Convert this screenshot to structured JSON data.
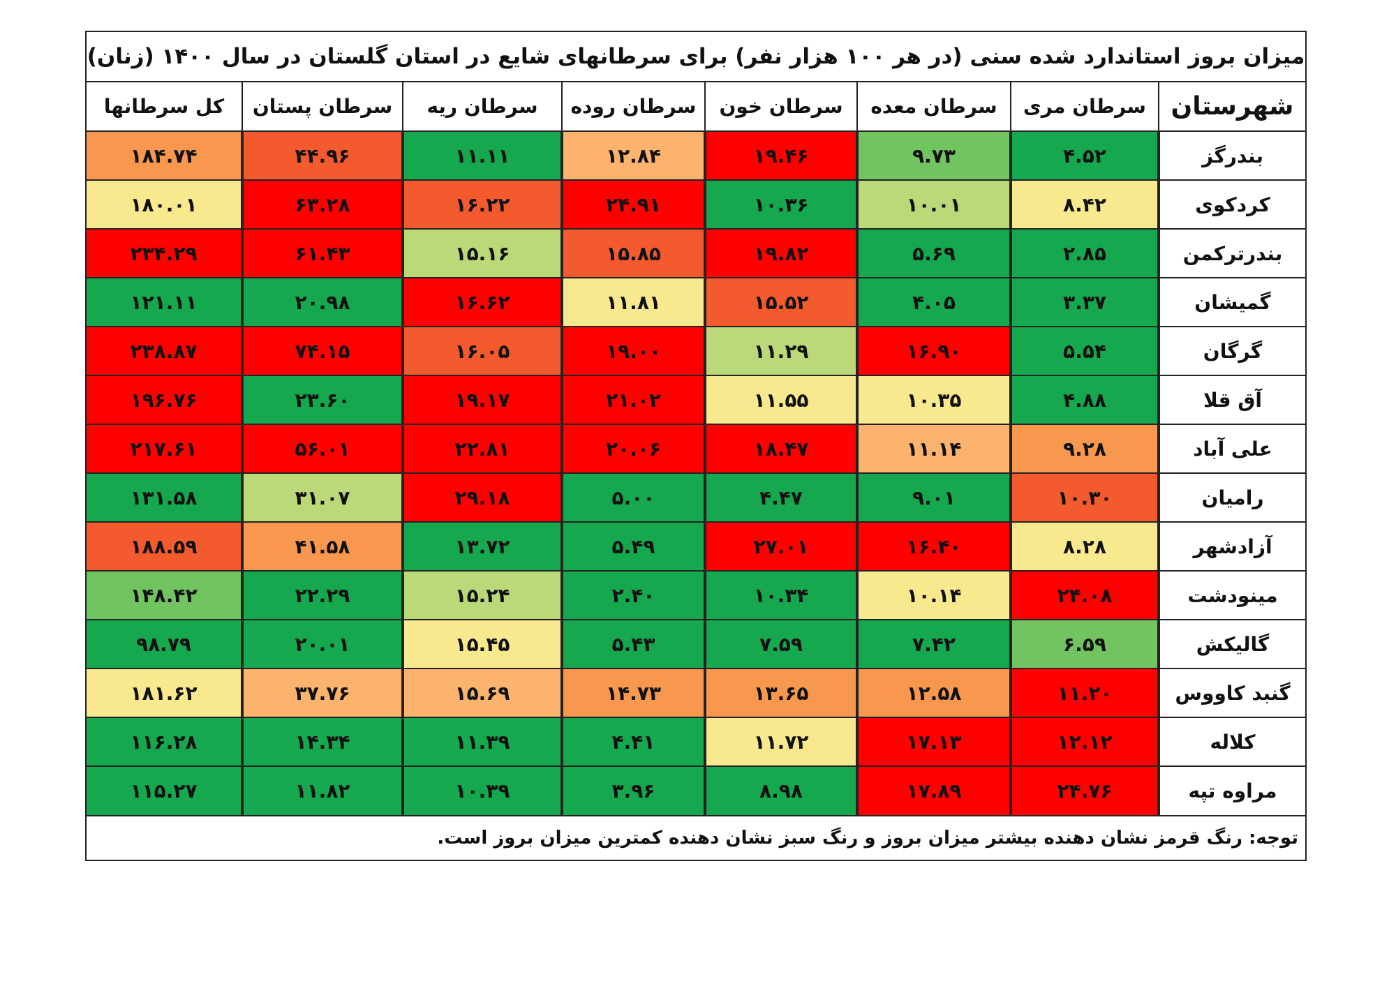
{
  "title": "میزان بروز استاندارد شده سنی (در هر ۱۰۰ هزار نفر) برای سرطانهای شایع در استان گلستان در سال ۱۴۰۰ (زنان)",
  "note": "توجه: رنگ قرمز نشان دهنده بیشتر میزان بروز و رنگ سبز نشان دهنده کمترین میزان بروز است.",
  "columns": [
    "شهرستان",
    "سرطان مری",
    "سرطان معده",
    "سرطان خون",
    "سرطان روده",
    "سرطان ریه",
    "سرطان پستان",
    "کل سرطانها"
  ],
  "palette": {
    "G": "#16a84e",
    "g": "#72c460",
    "l": "#bcd97a",
    "y": "#f8e88e",
    "o": "#fbb36e",
    "O": "#f8984f",
    "R": "#f35b2f",
    "r": "#ff0000"
  },
  "rows": [
    {
      "city": "بندرگز",
      "values": [
        "۴.۵۲",
        "۹.۷۳",
        "۱۹.۴۶",
        "۱۲.۸۴",
        "۱۱.۱۱",
        "۴۴.۹۶",
        "۱۸۴.۷۴"
      ],
      "colors": [
        "G",
        "g",
        "r",
        "o",
        "G",
        "R",
        "O"
      ]
    },
    {
      "city": "کردکوی",
      "values": [
        "۸.۴۲",
        "۱۰.۰۱",
        "۱۰.۳۶",
        "۲۴.۹۱",
        "۱۶.۲۲",
        "۶۳.۲۸",
        "۱۸۰.۰۱"
      ],
      "colors": [
        "y",
        "l",
        "G",
        "r",
        "R",
        "r",
        "y"
      ]
    },
    {
      "city": "بندرترکمن",
      "values": [
        "۲.۸۵",
        "۵.۶۹",
        "۱۹.۸۲",
        "۱۵.۸۵",
        "۱۵.۱۶",
        "۶۱.۴۳",
        "۲۳۴.۲۹"
      ],
      "colors": [
        "G",
        "G",
        "r",
        "R",
        "l",
        "r",
        "r"
      ]
    },
    {
      "city": "گمیشان",
      "values": [
        "۳.۳۷",
        "۴.۰۵",
        "۱۵.۵۲",
        "۱۱.۸۱",
        "۱۶.۶۲",
        "۲۰.۹۸",
        "۱۲۱.۱۱"
      ],
      "colors": [
        "G",
        "G",
        "R",
        "y",
        "r",
        "G",
        "G"
      ]
    },
    {
      "city": "گرگان",
      "values": [
        "۵.۵۴",
        "۱۶.۹۰",
        "۱۱.۲۹",
        "۱۹.۰۰",
        "۱۶.۰۵",
        "۷۴.۱۵",
        "۲۳۸.۸۷"
      ],
      "colors": [
        "G",
        "r",
        "l",
        "r",
        "R",
        "r",
        "r"
      ]
    },
    {
      "city": "آق قلا",
      "values": [
        "۴.۸۸",
        "۱۰.۳۵",
        "۱۱.۵۵",
        "۲۱.۰۲",
        "۱۹.۱۷",
        "۲۳.۶۰",
        "۱۹۶.۷۶"
      ],
      "colors": [
        "G",
        "y",
        "y",
        "r",
        "r",
        "G",
        "r"
      ]
    },
    {
      "city": "علی آباد",
      "values": [
        "۹.۲۸",
        "۱۱.۱۴",
        "۱۸.۴۷",
        "۲۰.۰۶",
        "۲۲.۸۱",
        "۵۶.۰۱",
        "۲۱۷.۶۱"
      ],
      "colors": [
        "O",
        "o",
        "r",
        "r",
        "r",
        "r",
        "r"
      ]
    },
    {
      "city": "رامیان",
      "values": [
        "۱۰.۳۰",
        "۹.۰۱",
        "۴.۴۷",
        "۵.۰۰",
        "۲۹.۱۸",
        "۳۱.۰۷",
        "۱۳۱.۵۸"
      ],
      "colors": [
        "R",
        "G",
        "G",
        "G",
        "r",
        "l",
        "G"
      ]
    },
    {
      "city": "آزادشهر",
      "values": [
        "۸.۲۸",
        "۱۶.۴۰",
        "۲۷.۰۱",
        "۵.۴۹",
        "۱۳.۷۲",
        "۴۱.۵۸",
        "۱۸۸.۵۹"
      ],
      "colors": [
        "y",
        "r",
        "r",
        "G",
        "G",
        "O",
        "R"
      ]
    },
    {
      "city": "مینودشت",
      "values": [
        "۲۴.۰۸",
        "۱۰.۱۴",
        "۱۰.۳۴",
        "۲.۴۰",
        "۱۵.۲۴",
        "۲۲.۲۹",
        "۱۴۸.۴۲"
      ],
      "colors": [
        "r",
        "y",
        "G",
        "G",
        "l",
        "G",
        "g"
      ]
    },
    {
      "city": "گالیکش",
      "values": [
        "۶.۵۹",
        "۷.۴۲",
        "۷.۵۹",
        "۵.۴۳",
        "۱۵.۴۵",
        "۲۰.۰۱",
        "۹۸.۷۹"
      ],
      "colors": [
        "g",
        "G",
        "G",
        "G",
        "y",
        "G",
        "G"
      ]
    },
    {
      "city": "گنبد کاووس",
      "values": [
        "۱۱.۲۰",
        "۱۲.۵۸",
        "۱۳.۶۵",
        "۱۴.۷۳",
        "۱۵.۶۹",
        "۳۷.۷۶",
        "۱۸۱.۶۲"
      ],
      "colors": [
        "r",
        "O",
        "O",
        "O",
        "o",
        "o",
        "y"
      ]
    },
    {
      "city": "کلاله",
      "values": [
        "۱۲.۱۲",
        "۱۷.۱۳",
        "۱۱.۷۲",
        "۴.۴۱",
        "۱۱.۳۹",
        "۱۴.۳۴",
        "۱۱۶.۲۸"
      ],
      "colors": [
        "r",
        "r",
        "y",
        "G",
        "G",
        "G",
        "G"
      ]
    },
    {
      "city": "مراوه تپه",
      "values": [
        "۲۴.۷۶",
        "۱۷.۸۹",
        "۸.۹۸",
        "۳.۹۶",
        "۱۰.۳۹",
        "۱۱.۸۲",
        "۱۱۵.۲۷"
      ],
      "colors": [
        "r",
        "r",
        "G",
        "G",
        "G",
        "G",
        "G"
      ]
    }
  ]
}
